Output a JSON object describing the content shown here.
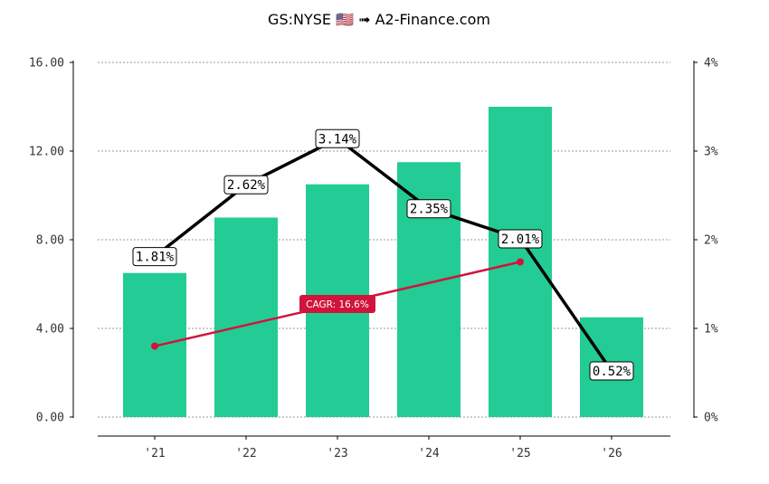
{
  "title": "GS:NYSE 🇺🇸 ➟ A2-Finance.com",
  "colors": {
    "bar": "#23cc95",
    "line": "#000000",
    "cagr": "#d0143c",
    "grid": "#999999"
  },
  "chart_data": {
    "type": "bar",
    "categories": [
      "'21",
      "'22",
      "'23",
      "'24",
      "'25",
      "'26"
    ],
    "series": [
      {
        "type": "bar",
        "axis": "left",
        "values": [
          6.5,
          9.0,
          10.5,
          11.5,
          14.0,
          4.5
        ]
      },
      {
        "type": "line",
        "axis": "right",
        "values": [
          1.81,
          2.62,
          3.14,
          2.35,
          2.01,
          0.52
        ],
        "labels": [
          "1.81%",
          "2.62%",
          "3.14%",
          "2.35%",
          "2.01%",
          "0.52%"
        ]
      }
    ],
    "cagr": {
      "label": "CAGR: 16.6%",
      "from_category": "'21",
      "to_category": "'25",
      "start": 3.2,
      "end": 7.0
    },
    "left_axis": {
      "ylim": [
        0,
        16
      ],
      "ticks": [
        "0.00",
        "4.00",
        "8.00",
        "12.00",
        "16.00"
      ]
    },
    "right_axis": {
      "ylim": [
        0,
        4
      ],
      "ticks": [
        "0%",
        "1%",
        "2%",
        "3%",
        "4%"
      ]
    },
    "grid": true
  }
}
